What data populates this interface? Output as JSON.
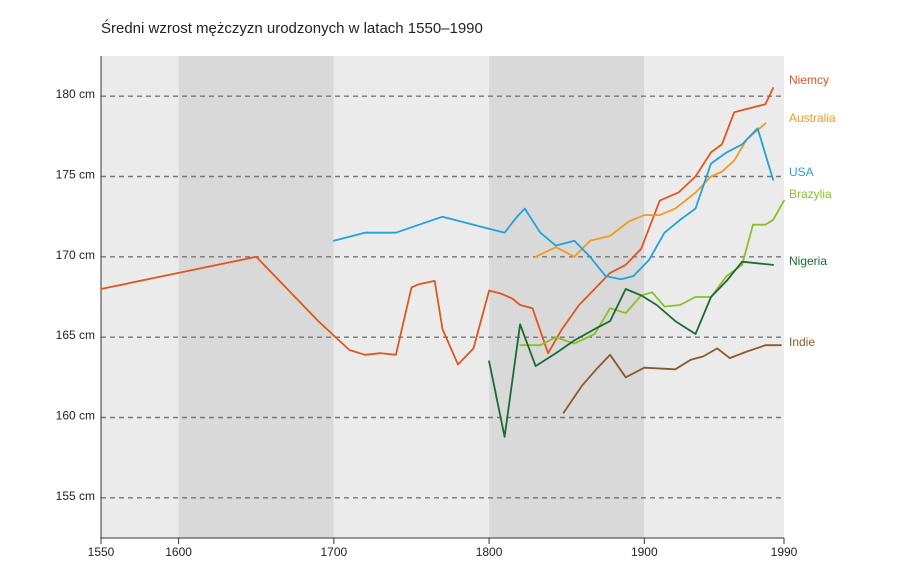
{
  "chart_data": {
    "type": "line",
    "title": "Średni wzrost mężczyzn urodzonych w latach 1550–1990",
    "xlabel": "",
    "ylabel": "",
    "xlim": [
      1550,
      1990
    ],
    "ylim": [
      152.5,
      182.5
    ],
    "x_ticks": [
      {
        "value": 1550,
        "label": "1550"
      },
      {
        "value": 1600,
        "label": "1600"
      },
      {
        "value": 1700,
        "label": "1700"
      },
      {
        "value": 1800,
        "label": "1800"
      },
      {
        "value": 1900,
        "label": "1900"
      },
      {
        "value": 1990,
        "label": "1990"
      }
    ],
    "y_ticks": [
      {
        "value": 155,
        "label": "155 cm"
      },
      {
        "value": 160,
        "label": "160 cm"
      },
      {
        "value": 165,
        "label": "165 cm"
      },
      {
        "value": 170,
        "label": "170 cm"
      },
      {
        "value": 175,
        "label": "175 cm"
      },
      {
        "value": 180,
        "label": "180 cm"
      }
    ],
    "bands": [
      {
        "from": 1550,
        "to": 1600,
        "shade": "light"
      },
      {
        "from": 1600,
        "to": 1700,
        "shade": "dark"
      },
      {
        "from": 1700,
        "to": 1800,
        "shade": "light"
      },
      {
        "from": 1800,
        "to": 1900,
        "shade": "dark"
      },
      {
        "from": 1900,
        "to": 1990,
        "shade": "light"
      }
    ],
    "grid": "dashed horizontal",
    "series": [
      {
        "name": "Niemcy",
        "color": "#e0561f",
        "x": [
          1550,
          1600,
          1650,
          1670,
          1690,
          1710,
          1720,
          1730,
          1740,
          1750,
          1755,
          1760,
          1765,
          1770,
          1780,
          1790,
          1800,
          1808,
          1815,
          1820,
          1828,
          1838,
          1847,
          1858,
          1868,
          1878,
          1888,
          1898,
          1902,
          1910,
          1922,
          1933,
          1943,
          1950,
          1958,
          1966,
          1978,
          1983
        ],
        "values": [
          168.0,
          169.0,
          170.0,
          168.0,
          166.0,
          164.2,
          163.9,
          164.0,
          163.9,
          168.1,
          168.3,
          168.4,
          168.5,
          165.5,
          163.3,
          164.3,
          167.9,
          167.7,
          167.4,
          167.0,
          166.8,
          164.0,
          165.5,
          167.0,
          168.0,
          169.0,
          169.5,
          170.5,
          171.5,
          173.5,
          174.0,
          175.0,
          176.5,
          177.0,
          179.0,
          179.2,
          179.5,
          180.5
        ]
      },
      {
        "name": "Australia",
        "color": "#f29a22",
        "x": [
          1830,
          1843,
          1855,
          1865,
          1878,
          1890,
          1900,
          1910,
          1920,
          1933,
          1943,
          1950,
          1958,
          1966,
          1978
        ],
        "values": [
          170.0,
          170.6,
          170.0,
          171.0,
          171.3,
          172.2,
          172.6,
          172.6,
          173.0,
          174.0,
          175.0,
          175.3,
          176.0,
          177.3,
          178.3
        ]
      },
      {
        "name": "USA",
        "color": "#22a2dc",
        "x": [
          1700,
          1720,
          1740,
          1770,
          1810,
          1818,
          1823,
          1833,
          1843,
          1855,
          1865,
          1875,
          1885,
          1893,
          1903,
          1913,
          1923,
          1933,
          1943,
          1953,
          1963,
          1973,
          1983
        ],
        "values": [
          171.0,
          171.5,
          171.5,
          172.5,
          171.5,
          172.5,
          173.0,
          171.5,
          170.7,
          171.0,
          170.0,
          168.8,
          168.6,
          168.8,
          169.8,
          171.5,
          172.3,
          173.0,
          175.8,
          176.5,
          177.0,
          178.0,
          174.8
        ]
      },
      {
        "name": "Brazylia",
        "color": "#8cbf26",
        "x": [
          1820,
          1833,
          1843,
          1855,
          1868,
          1878,
          1888,
          1898,
          1905,
          1913,
          1923,
          1933,
          1943,
          1953,
          1963,
          1970,
          1978,
          1983,
          1990
        ],
        "values": [
          164.5,
          164.5,
          165.0,
          164.6,
          165.2,
          166.8,
          166.5,
          167.6,
          167.8,
          166.9,
          167.0,
          167.5,
          167.5,
          168.8,
          169.5,
          172.0,
          172.0,
          172.3,
          173.5
        ]
      },
      {
        "name": "Nigeria",
        "color": "#1a6b35",
        "x": [
          1800,
          1810,
          1820,
          1830,
          1843,
          1855,
          1868,
          1878,
          1888,
          1898,
          1908,
          1920,
          1933,
          1943,
          1953,
          1963,
          1973,
          1983
        ],
        "values": [
          163.5,
          158.8,
          165.8,
          163.2,
          164.0,
          164.8,
          165.5,
          166.0,
          168.0,
          167.6,
          167.0,
          166.0,
          165.2,
          167.5,
          168.5,
          169.7,
          169.6,
          169.5
        ]
      },
      {
        "name": "Indie",
        "color": "#8b5a2b",
        "x": [
          1848,
          1860,
          1870,
          1878,
          1888,
          1900,
          1920,
          1930,
          1938,
          1947,
          1955,
          1966,
          1978,
          1988
        ],
        "values": [
          160.3,
          162.0,
          163.1,
          163.9,
          162.5,
          163.1,
          163.0,
          163.6,
          163.8,
          164.3,
          163.7,
          164.1,
          164.5,
          164.5
        ]
      }
    ]
  }
}
